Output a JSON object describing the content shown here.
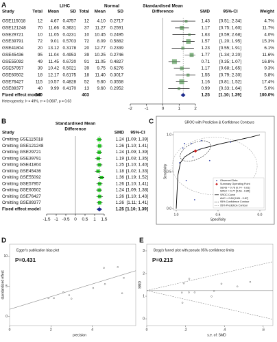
{
  "chart_data": [
    {
      "type": "forest",
      "panel": "A",
      "headers": {
        "study": "Study",
        "group1": "LIHC",
        "group2": "Normal",
        "group1_cols": [
          "Total",
          "Mean",
          "SD"
        ],
        "group2_cols": [
          "Total",
          "Mean",
          "SD"
        ],
        "effect": [
          "Standardised Mean",
          "Difference"
        ],
        "smd": "SMD",
        "ci": "95%-CI",
        "weight": "Weight"
      },
      "studies": [
        "GSE115018",
        "GSE121248",
        "GSE29721",
        "GSE39791",
        "GSE41804",
        "GSE45436",
        "GSE55092",
        "GSE57957",
        "GSE60502",
        "GSE76427",
        "GSE89377"
      ],
      "group1": [
        [
          "12",
          "4.67",
          "0.4757"
        ],
        [
          "70",
          "11.66",
          "0.3631"
        ],
        [
          "10",
          "11.05",
          "0.4231"
        ],
        [
          "72",
          "9.01",
          "0.5703"
        ],
        [
          "20",
          "13.12",
          "0.3178"
        ],
        [
          "95",
          "11.04",
          "0.4953"
        ],
        [
          "49",
          "11.45",
          "0.6720"
        ],
        [
          "39",
          "10.42",
          "0.5021"
        ],
        [
          "18",
          "12.17",
          "0.6175"
        ],
        [
          "115",
          "10.57",
          "0.4828"
        ],
        [
          "40",
          "9.99",
          "0.4170"
        ]
      ],
      "group2": [
        [
          "12",
          "4.10",
          "0.2717"
        ],
        [
          "37",
          "11.27",
          "0.2591"
        ],
        [
          "10",
          "10.45",
          "0.2495"
        ],
        [
          "72",
          "8.09",
          "0.5882"
        ],
        [
          "20",
          "12.77",
          "0.2339"
        ],
        [
          "39",
          "10.25",
          "0.2746"
        ],
        [
          "91",
          "11.05",
          "0.4827"
        ],
        [
          "39",
          "9.75",
          "0.6276"
        ],
        [
          "18",
          "11.40",
          "0.3017"
        ],
        [
          "52",
          "9.60",
          "0.3558"
        ],
        [
          "13",
          "9.60",
          "0.2952"
        ]
      ],
      "smd": [
        1.43,
        1.17,
        1.63,
        1.57,
        1.23,
        1.77,
        0.71,
        1.17,
        1.55,
        1.16,
        0.99
      ],
      "ci_lower": [
        0.51,
        0.75,
        0.59,
        1.2,
        0.55,
        1.34,
        0.35,
        0.68,
        0.79,
        0.81,
        0.33
      ],
      "ci_upper": [
        2.34,
        1.6,
        2.68,
        1.95,
        1.91,
        2.2,
        1.07,
        1.65,
        2.3,
        1.52,
        1.64
      ],
      "ci_labels": [
        "[0.51; 2.34]",
        "[0.75; 1.60]",
        "[0.59; 2.68]",
        "[1.20; 1.95]",
        "[0.55; 1.91]",
        "[1.34; 2.20]",
        "[0.35; 1.07]",
        "[0.68; 1.65]",
        "[0.79; 2.30]",
        "[0.81; 1.52]",
        "[0.33; 1.64]"
      ],
      "weights": [
        4.7,
        11.7,
        4.0,
        15.3,
        6.1,
        11.6,
        16.8,
        9.3,
        5.8,
        17.4,
        5.0
      ],
      "weight_labels": [
        "4.7%",
        "11.7%",
        "4.0%",
        "15.3%",
        "6.1%",
        "11.6%",
        "16.8%",
        "9.3%",
        "5.8%",
        "17.4%",
        "5.0%"
      ],
      "pooled": {
        "label": "Fixed effect model",
        "group1_total": "540",
        "group2_total": "403",
        "smd": 1.25,
        "ci_lower": 1.1,
        "ci_upper": 1.39,
        "ci_label": "[1.10; 1.39]",
        "weight": 100.0,
        "weight_label": "100.0%"
      },
      "heterogeneity": "Heterogeneity: I² = 49%, τ² = 0.0607, p = 0.03",
      "xlim": [
        -2,
        2
      ],
      "xticks": [
        -2,
        -1,
        0,
        1,
        2
      ],
      "colors": {
        "marker": "#86b886",
        "diamond": "#1c2a8c"
      }
    },
    {
      "type": "forest",
      "panel": "B",
      "headers": {
        "study": "Study",
        "effect": [
          "Standardised Mean",
          "Difference"
        ],
        "smd": "SMD",
        "ci": "95%-CI"
      },
      "studies": [
        "Omitting GSE115018",
        "Omitting GSE121248",
        "Omitting GSE29721",
        "Omitting GSE39791",
        "Omitting GSE41804",
        "Omitting GSE45436",
        "Omitting GSE55092",
        "Omitting GSE57957",
        "Omitting GSE60502",
        "Omitting GSE76427",
        "Omitting GSE89377"
      ],
      "smd": [
        1.24,
        1.26,
        1.24,
        1.19,
        1.25,
        1.18,
        1.36,
        1.26,
        1.24,
        1.26,
        1.26
      ],
      "ci_lower": [
        1.09,
        1.1,
        1.09,
        1.03,
        1.1,
        1.02,
        1.19,
        1.1,
        1.09,
        1.1,
        1.11
      ],
      "ci_upper": [
        1.39,
        1.41,
        1.39,
        1.35,
        1.4,
        1.33,
        1.52,
        1.41,
        1.38,
        1.43,
        1.41
      ],
      "ci_labels": [
        "[1.09; 1.39]",
        "[1.10; 1.41]",
        "[1.09; 1.39]",
        "[1.03; 1.35]",
        "[1.10; 1.40]",
        "[1.02; 1.33]",
        "[1.19; 1.52]",
        "[1.10; 1.41]",
        "[1.09; 1.38]",
        "[1.10; 1.43]",
        "[1.11; 1.41]"
      ],
      "pooled": {
        "label": "Fixed effect model",
        "smd": 1.25,
        "ci_lower": 1.1,
        "ci_upper": 1.39,
        "ci_label": "[1.10; 1.39]"
      },
      "xlim": [
        -1.5,
        1.5
      ],
      "xticks": [
        -1.5,
        -1,
        -0.5,
        0,
        0.5,
        1,
        1.5
      ],
      "colors": {
        "marker": "#2ccf2c",
        "diamond": "#1c2a8c"
      }
    },
    {
      "type": "sroc",
      "panel": "C",
      "title": "SROC with Prediction & Confidence Contours",
      "xlabel": "Specificity",
      "ylabel": "Sensitivity",
      "xlim": [
        1,
        0
      ],
      "ylim": [
        0,
        1
      ],
      "xticks": [
        {
          "value": 1,
          "label": "1.0"
        },
        {
          "value": 0.5,
          "label": "0.5"
        },
        {
          "value": 0,
          "label": "0.0"
        }
      ],
      "yticks": [
        {
          "value": 0,
          "label": "0.0"
        },
        {
          "value": 0.5,
          "label": "0.5"
        },
        {
          "value": 1,
          "label": "1.0"
        }
      ],
      "observed": {
        "name": "Observed Data",
        "x": [
          0.96,
          0.92,
          0.9,
          0.82,
          0.8,
          0.7,
          0.78,
          0.6,
          0.35,
          0.88,
          0.72
        ],
        "y": [
          0.62,
          0.82,
          0.88,
          0.88,
          0.7,
          0.92,
          0.12,
          0.65,
          0.9,
          0.38,
          0.8
        ]
      },
      "summary": {
        "name": "Summary Operating Point",
        "x": 0.77,
        "y": 0.78,
        "labels": [
          "SENS = 0.78 [0.74 - 0.81]",
          "SPEC = 0.77 [0.66 - 0.85]"
        ]
      },
      "curve": {
        "name": "SROC Curve",
        "label": "AUC = 0.84 [0.81 - 0.87]",
        "x": [
          1,
          0.98,
          0.95,
          0.9,
          0.8,
          0.7,
          0.5,
          0.3,
          0.1,
          0
        ],
        "y": [
          0,
          0.45,
          0.62,
          0.7,
          0.77,
          0.81,
          0.87,
          0.92,
          0.97,
          1
        ]
      },
      "confidence_contour": {
        "name": "95% Confidence Contour"
      },
      "prediction_contour": {
        "name": "95% Prediction Contour"
      },
      "legend": "lower right"
    },
    {
      "type": "scatter",
      "panel": "D",
      "title": "Egger's publication bias plot",
      "annotation": "P=0.431",
      "xlabel": "precision",
      "ylabel": "standardized effect",
      "x": [
        2.14,
        4.61,
        1.88,
        5.23,
        2.88,
        4.56,
        5.44,
        4.04,
        2.6,
        5.52,
        2.99
      ],
      "y": [
        3.06,
        5.39,
        3.06,
        8.21,
        3.54,
        8.07,
        3.86,
        4.73,
        4.03,
        6.41,
        2.96
      ],
      "fit": {
        "x": [
          0,
          6.1
        ],
        "y": [
          1.2,
          7.6
        ]
      },
      "xlim": [
        0,
        6.1
      ],
      "ylim": [
        -1.5,
        12
      ],
      "xticks": [
        0,
        2,
        4
      ],
      "yticks": [
        0,
        5,
        10
      ],
      "color": "#666666"
    },
    {
      "type": "funnel",
      "panel": "E",
      "title": "Begg's funnel plot with pseudo 95% confidence limits",
      "annotation": "P=0.213",
      "xlabel": "s.e. of: SMD",
      "ylabel": "SMD",
      "x": [
        0.467,
        0.217,
        0.533,
        0.191,
        0.347,
        0.219,
        0.184,
        0.247,
        0.385,
        0.181,
        0.334
      ],
      "y": [
        1.43,
        1.17,
        1.63,
        1.57,
        1.23,
        1.77,
        0.71,
        1.17,
        1.55,
        1.16,
        0.99
      ],
      "pooled": 1.25,
      "xlim": [
        0,
        0.65
      ],
      "ylim": [
        -0.3,
        3.3
      ],
      "xticks": [
        0,
        {
          "value": 0.2,
          "label": ".2"
        },
        {
          "value": 0.4,
          "label": ".4"
        },
        {
          "value": 0.6,
          "label": ".6"
        }
      ],
      "yticks": [
        0,
        1,
        2,
        3
      ],
      "color": "#666666"
    }
  ]
}
